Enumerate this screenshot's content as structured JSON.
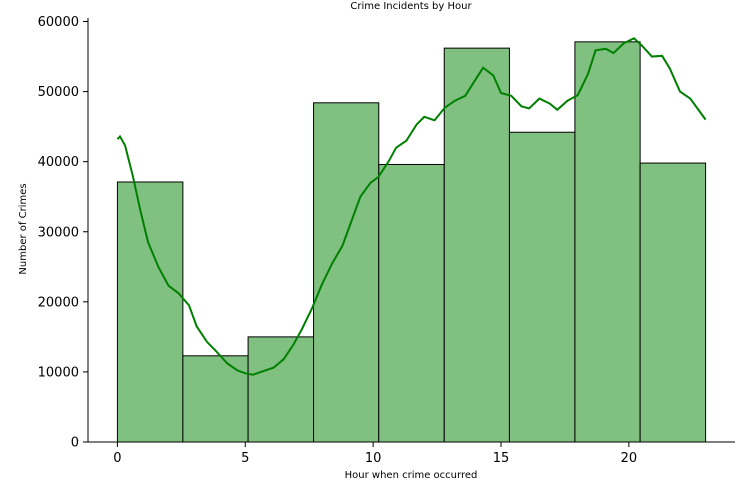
{
  "chart_data": {
    "type": "bar",
    "title": "Crime Incidents by Hour",
    "xlabel": "Hour when crime occurred",
    "ylabel": "Number of Crimes",
    "xlim": [
      -1.15,
      24.15
    ],
    "ylim": [
      0,
      60500
    ],
    "grid": false,
    "bar_color": "#80c080",
    "bar_edge_color": "#000000",
    "kde_color": "#008000",
    "x_ticks": [
      0,
      5,
      10,
      15,
      20
    ],
    "x_tick_labels": [
      "0",
      "5",
      "10",
      "15",
      "20"
    ],
    "y_ticks": [
      0,
      10000,
      20000,
      30000,
      40000,
      50000,
      60000
    ],
    "y_tick_labels": [
      "0",
      "10000",
      "20000",
      "30000",
      "40000",
      "50000",
      "60000"
    ],
    "bins": [
      {
        "x0": 0.0,
        "x1": 2.56,
        "value": 37100
      },
      {
        "x0": 2.56,
        "x1": 5.11,
        "value": 12300
      },
      {
        "x0": 5.11,
        "x1": 7.67,
        "value": 15000
      },
      {
        "x0": 7.67,
        "x1": 10.22,
        "value": 48400
      },
      {
        "x0": 10.22,
        "x1": 12.78,
        "value": 39600
      },
      {
        "x0": 12.78,
        "x1": 15.33,
        "value": 56200
      },
      {
        "x0": 15.33,
        "x1": 17.89,
        "value": 44200
      },
      {
        "x0": 17.89,
        "x1": 20.44,
        "value": 57100
      },
      {
        "x0": 20.44,
        "x1": 23.0,
        "value": 39800
      }
    ],
    "kde": [
      [
        0.0,
        43200
      ],
      [
        0.1,
        43600
      ],
      [
        0.3,
        42300
      ],
      [
        0.6,
        38000
      ],
      [
        0.9,
        33000
      ],
      [
        1.2,
        28500
      ],
      [
        1.6,
        25000
      ],
      [
        2.0,
        22300
      ],
      [
        2.4,
        21200
      ],
      [
        2.8,
        19500
      ],
      [
        3.1,
        16500
      ],
      [
        3.5,
        14300
      ],
      [
        3.9,
        12800
      ],
      [
        4.3,
        11200
      ],
      [
        4.7,
        10200
      ],
      [
        5.0,
        9800
      ],
      [
        5.3,
        9600
      ],
      [
        5.7,
        10100
      ],
      [
        6.1,
        10600
      ],
      [
        6.5,
        11800
      ],
      [
        6.9,
        14000
      ],
      [
        7.2,
        16000
      ],
      [
        7.6,
        19000
      ],
      [
        8.0,
        22500
      ],
      [
        8.4,
        25500
      ],
      [
        8.8,
        28000
      ],
      [
        9.1,
        31000
      ],
      [
        9.5,
        35000
      ],
      [
        9.9,
        37000
      ],
      [
        10.2,
        37800
      ],
      [
        10.6,
        40000
      ],
      [
        10.9,
        42000
      ],
      [
        11.3,
        43000
      ],
      [
        11.7,
        45300
      ],
      [
        12.0,
        46400
      ],
      [
        12.4,
        45900
      ],
      [
        12.8,
        47700
      ],
      [
        13.2,
        48700
      ],
      [
        13.6,
        49400
      ],
      [
        14.0,
        51700
      ],
      [
        14.3,
        53400
      ],
      [
        14.7,
        52300
      ],
      [
        15.0,
        49800
      ],
      [
        15.4,
        49400
      ],
      [
        15.8,
        47900
      ],
      [
        16.1,
        47600
      ],
      [
        16.5,
        49000
      ],
      [
        16.9,
        48300
      ],
      [
        17.2,
        47400
      ],
      [
        17.6,
        48700
      ],
      [
        18.0,
        49500
      ],
      [
        18.4,
        52500
      ],
      [
        18.7,
        55900
      ],
      [
        19.1,
        56100
      ],
      [
        19.4,
        55500
      ],
      [
        19.8,
        56900
      ],
      [
        20.2,
        57600
      ],
      [
        20.5,
        56600
      ],
      [
        20.9,
        55000
      ],
      [
        21.3,
        55100
      ],
      [
        21.6,
        53300
      ],
      [
        22.0,
        50000
      ],
      [
        22.4,
        49000
      ],
      [
        22.8,
        47000
      ],
      [
        23.0,
        46000
      ]
    ]
  }
}
